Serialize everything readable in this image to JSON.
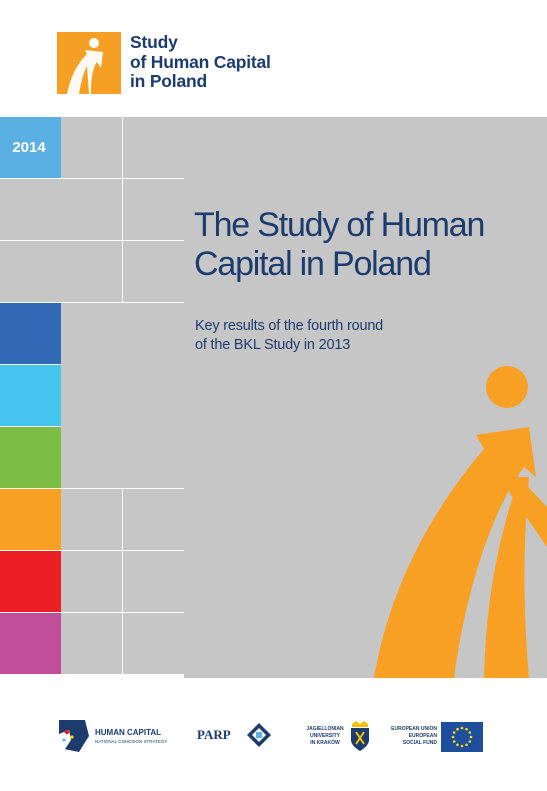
{
  "header": {
    "logo_icon": "person-figure-icon",
    "logo_lines": [
      "Study",
      "of Human Capital",
      "in Poland"
    ],
    "accent_color": "#f5a024"
  },
  "grid": {
    "year": "2014",
    "colors": {
      "gray": "#c6c6c7",
      "year_blue": "#5ab0e2",
      "dark_blue": "#3169b4",
      "cyan": "#45c4ee",
      "green": "#7cbd45",
      "orange": "#f7a024",
      "red": "#ec2024",
      "magenta": "#c04d9a"
    }
  },
  "cover": {
    "title_lines": [
      "The Study of Human",
      "Capital in Poland"
    ],
    "subtitle_lines": [
      "Key results of the fourth round",
      "of the BKL Study in 2013"
    ],
    "text_color": "#1d3c6e",
    "figure_icon": "person-figure-icon"
  },
  "footer": {
    "human_capital": {
      "icon": "human-capital-logo-icon",
      "title": "HUMAN CAPITAL",
      "subtitle": "NATIONAL COHESION STRATEGY"
    },
    "parp": {
      "label": "PARP",
      "icon": "parp-logo-icon"
    },
    "jagiellonian": {
      "lines": [
        "JAGIELLONIAN",
        "UNIVERSITY",
        "IN KRAKÓW"
      ],
      "icon": "university-crest-icon"
    },
    "eu": {
      "lines": [
        "EUROPEAN UNION",
        "EUROPEAN",
        "SOCIAL FUND"
      ],
      "icon": "eu-flag-icon",
      "flag_color": "#1f4e9e",
      "star_color": "#ffdd00"
    }
  }
}
